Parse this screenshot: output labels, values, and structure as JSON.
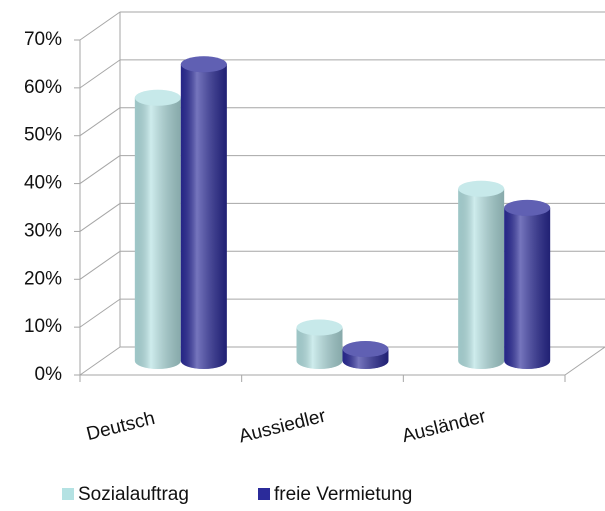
{
  "chart_data": {
    "type": "bar3d",
    "categories": [
      "Deutsch",
      "Aussiedler",
      "Ausländer"
    ],
    "series": [
      {
        "name": "Sozialauftrag",
        "color": "#b4e2e3",
        "values": [
          55,
          7,
          36
        ]
      },
      {
        "name": "freie Vermietung",
        "color": "#2b2b9a",
        "values": [
          62,
          2.5,
          32
        ]
      }
    ],
    "ylim": [
      0,
      70
    ],
    "yticks": [
      {
        "value": 0,
        "label": "0%"
      },
      {
        "value": 10,
        "label": "10%"
      },
      {
        "value": 20,
        "label": "20%"
      },
      {
        "value": 30,
        "label": "30%"
      },
      {
        "value": 40,
        "label": "40%"
      },
      {
        "value": 50,
        "label": "50%"
      },
      {
        "value": 60,
        "label": "60%"
      },
      {
        "value": 70,
        "label": "70%"
      }
    ],
    "grid": true,
    "legend": "bottom"
  }
}
